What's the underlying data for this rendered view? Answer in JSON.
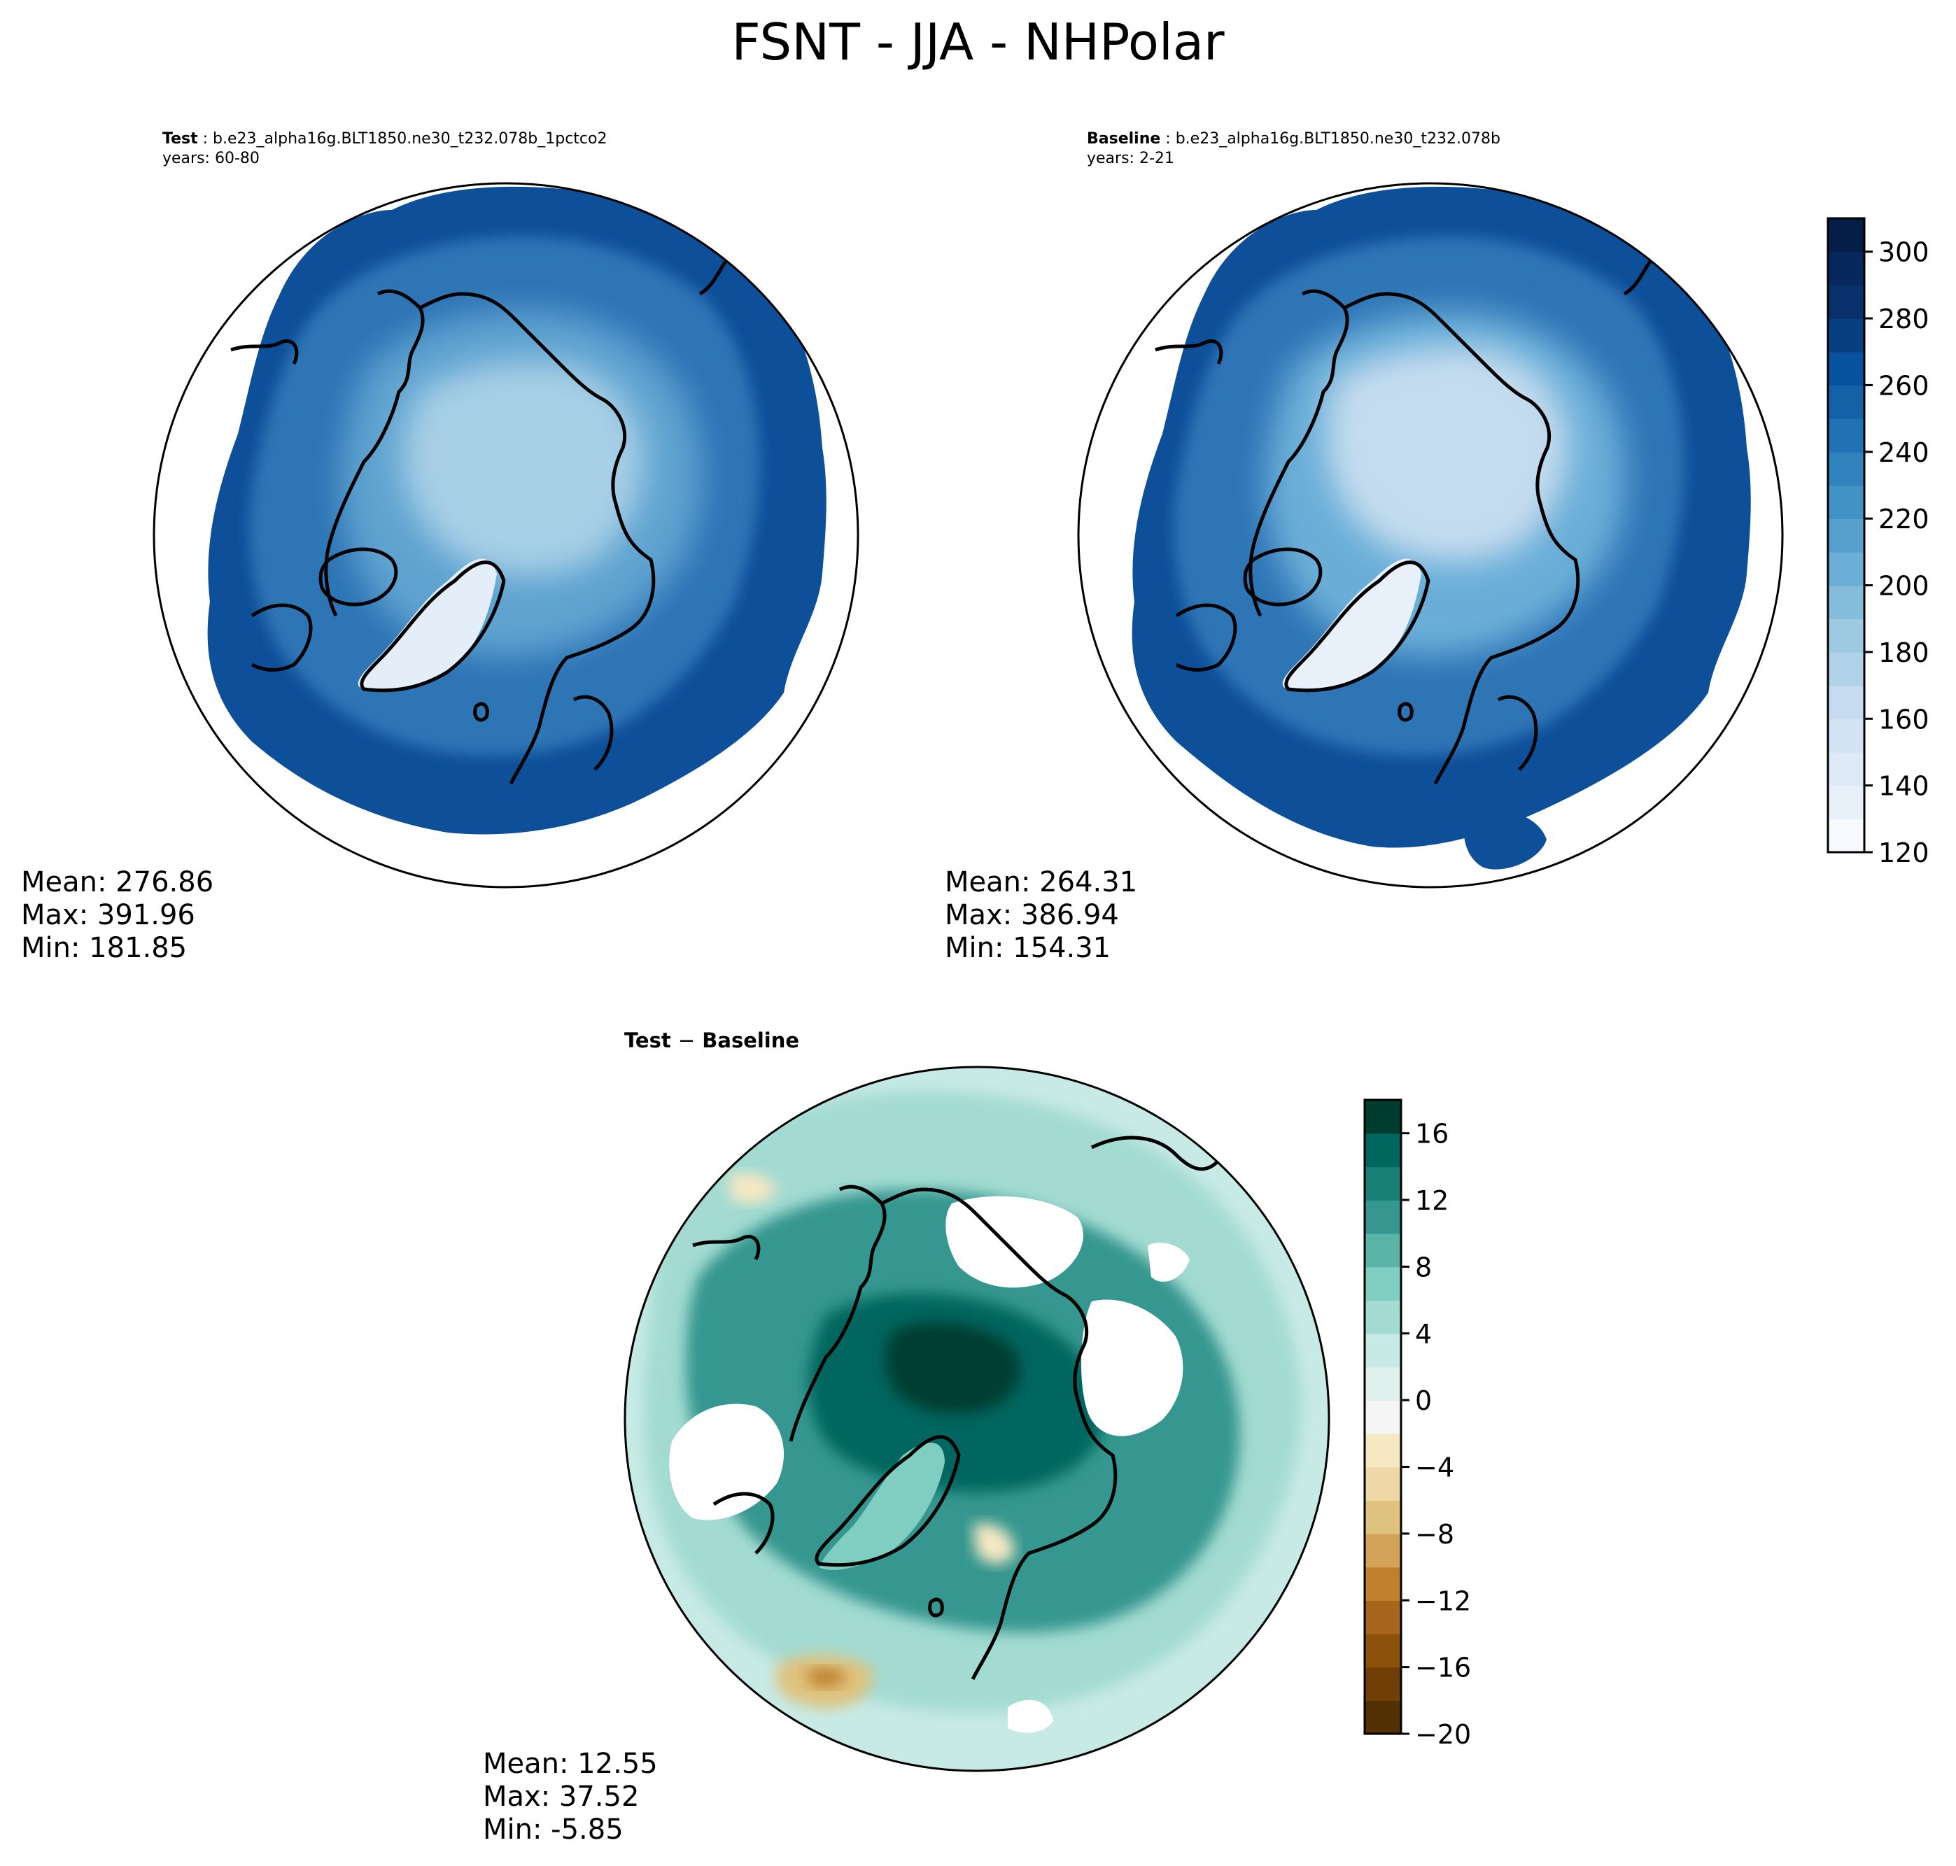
{
  "figure": {
    "title": "FSNT - JJA - NHPolar"
  },
  "panels": {
    "test": {
      "label": "Test",
      "case": "b.e23_alpha16g.BLT1850.ne30_t232.078b_1pctco2",
      "years": "years: 60-80",
      "stats": {
        "mean": "Mean: 276.86",
        "max": "Max: 391.96",
        "min": "Min: 181.85"
      }
    },
    "baseline": {
      "label": "Baseline",
      "case": "b.e23_alpha16g.BLT1850.ne30_t232.078b",
      "years": "years: 2-21",
      "stats": {
        "mean": "Mean: 264.31",
        "max": "Max: 386.94",
        "min": "Min: 154.31"
      }
    },
    "diff": {
      "label_test": "Test",
      "label_minus": "−",
      "label_baseline": "Baseline",
      "stats": {
        "mean": "Mean: 12.55",
        "max": "Max: 37.52",
        "min": "Min: -5.85"
      }
    }
  },
  "colorbars": {
    "main": {
      "colormap": "Blues",
      "range": [
        120,
        310
      ],
      "ticks": [
        "120",
        "140",
        "160",
        "180",
        "200",
        "220",
        "240",
        "260",
        "280",
        "300"
      ],
      "tick_values": [
        120,
        140,
        160,
        180,
        200,
        220,
        240,
        260,
        280,
        300
      ],
      "levels": 19,
      "colors": [
        "#f7fbff",
        "#e8f1fa",
        "#deebf7",
        "#d2e3f3",
        "#c6dbef",
        "#b0d2e8",
        "#9ecae1",
        "#84bcdb",
        "#6baed6",
        "#57a0ce",
        "#4292c6",
        "#3282be",
        "#2171b5",
        "#1461a8",
        "#08519c",
        "#083f80",
        "#08306b",
        "#06285c",
        "#041e48"
      ]
    },
    "diff": {
      "colormap": "BrBG",
      "range": [
        -20,
        18
      ],
      "ticks": [
        "−20",
        "−16",
        "−12",
        "−8",
        "−4",
        "0",
        "4",
        "8",
        "12",
        "16"
      ],
      "tick_values": [
        -20,
        -16,
        -12,
        -8,
        -4,
        0,
        4,
        8,
        12,
        16
      ],
      "levels": 19,
      "colors": [
        "#543005",
        "#6f3f07",
        "#8c510a",
        "#a5651a",
        "#bf812d",
        "#d4a35a",
        "#dfc27d",
        "#eed8a7",
        "#f6e8c3",
        "#f5f5f5",
        "#e0f0ec",
        "#c7eae5",
        "#a3dbd2",
        "#80cdc1",
        "#5ab4a8",
        "#35978f",
        "#1a7f75",
        "#01665e",
        "#003c30"
      ]
    }
  }
}
